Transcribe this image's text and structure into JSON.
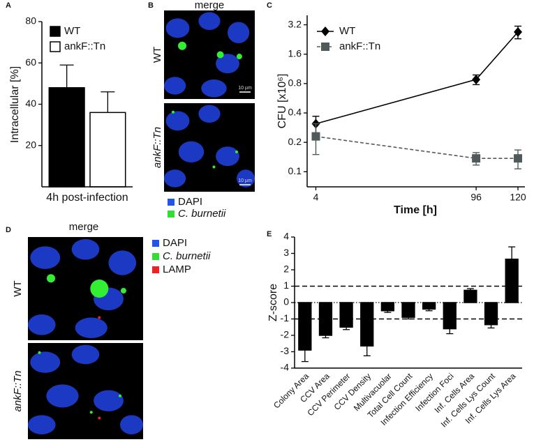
{
  "chart_data": [
    {
      "panel_label": "A",
      "type": "bar",
      "categories": [
        "4h post-infection"
      ],
      "series": [
        {
          "name": "WT",
          "color": "#000000",
          "values": [
            48
          ],
          "errors": [
            11
          ]
        },
        {
          "name": "ankF::Tn",
          "color": "#ffffff",
          "values": [
            36
          ],
          "errors": [
            10
          ]
        }
      ],
      "y_label": "Intracellular [%]",
      "ylim": [
        0,
        80
      ],
      "yticks": [
        20,
        40,
        60,
        80
      ],
      "legend": "upper-left"
    },
    {
      "panel_label": "C",
      "type": "line",
      "x": [
        4,
        96,
        120
      ],
      "series": [
        {
          "name": "WT",
          "color": "#000000",
          "marker": "diamond",
          "linestyle": "solid",
          "values": [
            0.31,
            0.88,
            2.7
          ],
          "errors": [
            0.06,
            0.1,
            0.4
          ]
        },
        {
          "name": "ankF::Tn",
          "color": "#505a5a",
          "marker": "square",
          "linestyle": "dashed",
          "values": [
            0.23,
            0.137,
            0.137
          ],
          "errors": [
            0.08,
            0.02,
            0.03
          ]
        }
      ],
      "x_label": "Time [h]",
      "y_label": "CFU [x10⁶]",
      "xlim": [
        -1,
        124
      ],
      "xticks": [
        4,
        96,
        120
      ],
      "ylim": [
        0.07,
        4
      ],
      "yticks": [
        0.1,
        0.2,
        0.4,
        0.8,
        1.6,
        3.2
      ],
      "y_scale": "log",
      "legend": "upper-left"
    },
    {
      "panel_label": "E",
      "type": "bar",
      "categories": [
        "Colony Area",
        "CCV Area",
        "CCV Perimeter",
        "CCV Density",
        "Multivacuolar",
        "Total Cell Count",
        "Infection Efficiency",
        "Infection Foci",
        "Inf. Cells Area",
        "Inf. Cells Lys Count",
        "Inf. Cells Lys Area"
      ],
      "values": [
        -2.9,
        -2.0,
        -1.5,
        -2.65,
        -0.5,
        -0.9,
        -0.4,
        -1.6,
        0.75,
        -1.35,
        2.65
      ],
      "errors": [
        0.7,
        0.15,
        0.15,
        0.6,
        0.1,
        0.1,
        0.1,
        0.3,
        0.1,
        0.2,
        0.75
      ],
      "color": "#000000",
      "y_label": "Z-score",
      "ylim": [
        -4,
        4
      ],
      "yticks": [
        -4,
        -3,
        -2,
        -1,
        0,
        1,
        2,
        3,
        4
      ],
      "reference_lines": [
        1,
        -1
      ],
      "zero_line": true
    }
  ],
  "micrographs": [
    {
      "panel_label": "B",
      "title": "merge",
      "rows": [
        "WT",
        "ankF::Tn"
      ],
      "scale_bar": "10 µm",
      "legend": [
        {
          "name": "DAPI",
          "color": "#2255e8"
        },
        {
          "name": "C. burnetii",
          "color": "#33dd33"
        }
      ]
    },
    {
      "panel_label": "D",
      "title": "merge",
      "rows": [
        "WT",
        "ankF::Tn"
      ],
      "legend": [
        {
          "name": "DAPI",
          "color": "#2255e8"
        },
        {
          "name": "C. burnetii",
          "color": "#33dd33"
        },
        {
          "name": "LAMP",
          "color": "#ee2222"
        }
      ]
    }
  ]
}
